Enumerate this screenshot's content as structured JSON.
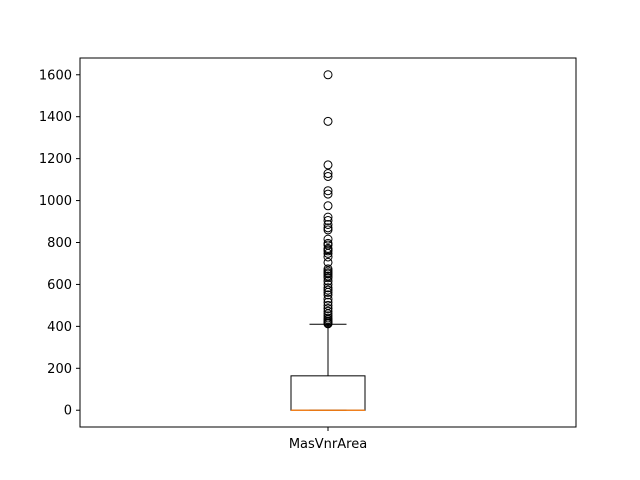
{
  "chart_data": {
    "type": "box",
    "categories": [
      "MasVnrArea"
    ],
    "box": {
      "min": 0,
      "q1": 0,
      "median": 0,
      "q3": 164,
      "whisker_high": 410
    },
    "outliers": [
      1600,
      1378,
      1170,
      1129,
      1115,
      1047,
      1031,
      975,
      921,
      905,
      886,
      870,
      860,
      816,
      796,
      788,
      772,
      766,
      760,
      748,
      731,
      705,
      674,
      664,
      656,
      650,
      640,
      632,
      616,
      600,
      584,
      573,
      562,
      550,
      530,
      515,
      500,
      485,
      472,
      460,
      450,
      440,
      432,
      425,
      420,
      415,
      412
    ],
    "yticks": [
      0,
      200,
      400,
      600,
      800,
      1000,
      1200,
      1400,
      1600
    ],
    "ylim": [
      -80,
      1680
    ],
    "colors": {
      "median": "#ff7f0e",
      "box": "#000000",
      "outlier": "#000000"
    }
  }
}
